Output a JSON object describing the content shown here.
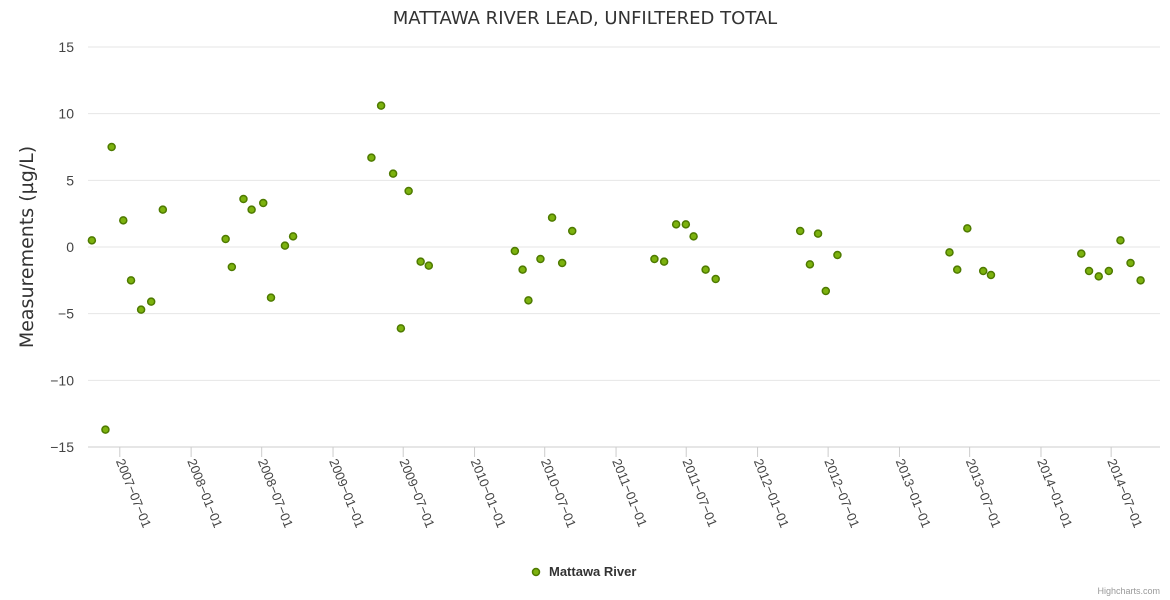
{
  "chart_data": {
    "type": "scatter",
    "title": "MATTAWA RIVER LEAD, UNFILTERED TOTAL",
    "ylabel": "Measurements (µg/L)",
    "xlabel": "",
    "ylim": [
      -15,
      15
    ],
    "yticks": [
      15,
      10,
      5,
      0,
      -5,
      -10,
      -15
    ],
    "xlim": [
      "2007-04-10",
      "2014-11-04"
    ],
    "xticks": [
      "2007-07-01",
      "2008-01-01",
      "2008-07-01",
      "2009-01-01",
      "2009-07-01",
      "2010-01-01",
      "2010-07-01",
      "2011-01-01",
      "2011-07-01",
      "2012-01-01",
      "2012-07-01",
      "2013-01-01",
      "2013-07-01",
      "2014-01-01",
      "2014-07-01"
    ],
    "grid": true,
    "legend": "bottom-center",
    "series": [
      {
        "name": "Mattawa River",
        "color": "#7cb20e",
        "points": [
          {
            "x": "2007-04-20",
            "y": 0.5
          },
          {
            "x": "2007-05-25",
            "y": -13.7
          },
          {
            "x": "2007-06-10",
            "y": 7.5
          },
          {
            "x": "2007-07-10",
            "y": 2.0
          },
          {
            "x": "2007-07-30",
            "y": -2.5
          },
          {
            "x": "2007-08-25",
            "y": -4.7
          },
          {
            "x": "2007-09-20",
            "y": -4.1
          },
          {
            "x": "2007-10-20",
            "y": 2.8
          },
          {
            "x": "2008-03-30",
            "y": 0.6
          },
          {
            "x": "2008-04-15",
            "y": -1.5
          },
          {
            "x": "2008-05-15",
            "y": 3.6
          },
          {
            "x": "2008-06-05",
            "y": 2.8
          },
          {
            "x": "2008-07-05",
            "y": 3.3
          },
          {
            "x": "2008-07-25",
            "y": -3.8
          },
          {
            "x": "2008-08-30",
            "y": 0.1
          },
          {
            "x": "2008-09-20",
            "y": 0.8
          },
          {
            "x": "2009-04-10",
            "y": 6.7
          },
          {
            "x": "2009-05-05",
            "y": 10.6
          },
          {
            "x": "2009-06-05",
            "y": 5.5
          },
          {
            "x": "2009-06-25",
            "y": -6.1
          },
          {
            "x": "2009-07-15",
            "y": 4.2
          },
          {
            "x": "2009-08-15",
            "y": -1.1
          },
          {
            "x": "2009-09-05",
            "y": -1.4
          },
          {
            "x": "2010-04-15",
            "y": -0.3
          },
          {
            "x": "2010-05-05",
            "y": -1.7
          },
          {
            "x": "2010-05-20",
            "y": -4.0
          },
          {
            "x": "2010-06-20",
            "y": -0.9
          },
          {
            "x": "2010-07-20",
            "y": 2.2
          },
          {
            "x": "2010-08-15",
            "y": -1.2
          },
          {
            "x": "2010-09-10",
            "y": 1.2
          },
          {
            "x": "2011-04-10",
            "y": -0.9
          },
          {
            "x": "2011-05-05",
            "y": -1.1
          },
          {
            "x": "2011-06-05",
            "y": 1.7
          },
          {
            "x": "2011-06-30",
            "y": 1.7
          },
          {
            "x": "2011-07-20",
            "y": 0.8
          },
          {
            "x": "2011-08-20",
            "y": -1.7
          },
          {
            "x": "2011-09-15",
            "y": -2.4
          },
          {
            "x": "2012-04-20",
            "y": 1.2
          },
          {
            "x": "2012-05-15",
            "y": -1.3
          },
          {
            "x": "2012-06-05",
            "y": 1.0
          },
          {
            "x": "2012-06-25",
            "y": -3.3
          },
          {
            "x": "2012-07-25",
            "y": -0.6
          },
          {
            "x": "2013-05-10",
            "y": -0.4
          },
          {
            "x": "2013-05-30",
            "y": -1.7
          },
          {
            "x": "2013-06-25",
            "y": 1.4
          },
          {
            "x": "2013-08-05",
            "y": -1.8
          },
          {
            "x": "2013-08-25",
            "y": -2.1
          },
          {
            "x": "2014-04-15",
            "y": -0.5
          },
          {
            "x": "2014-05-05",
            "y": -1.8
          },
          {
            "x": "2014-05-30",
            "y": -2.2
          },
          {
            "x": "2014-06-25",
            "y": -1.8
          },
          {
            "x": "2014-07-25",
            "y": 0.5
          },
          {
            "x": "2014-08-20",
            "y": -1.2
          },
          {
            "x": "2014-09-15",
            "y": -2.5
          }
        ]
      }
    ],
    "credits": "Highcharts.com"
  }
}
